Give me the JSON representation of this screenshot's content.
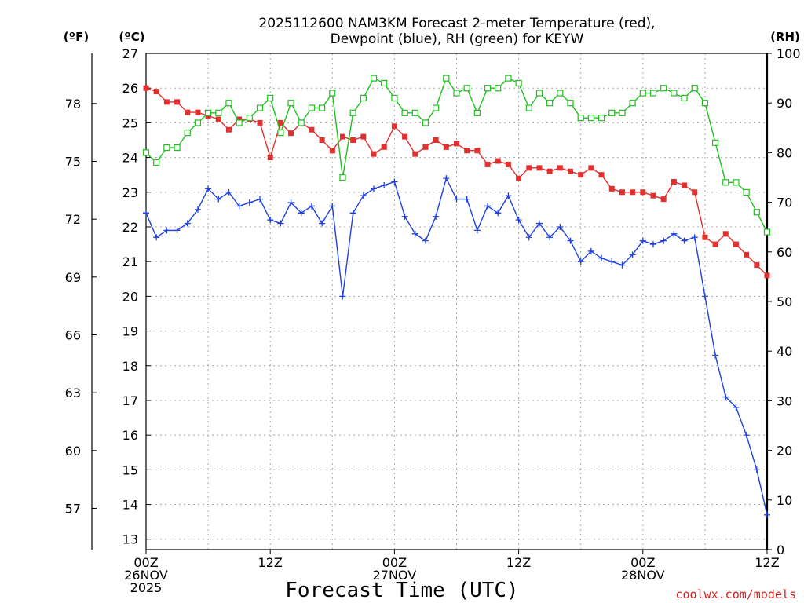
{
  "chart_data": {
    "type": "line",
    "title_line1": "2025112600 NAM3KM Forecast 2-meter Temperature (red),",
    "title_line2": "Dewpoint (blue), RH (green) for KEYW",
    "xlabel": "Forecast Time (UTC)",
    "watermark": "coolwx.com/models",
    "axis_f_label": "(ºF)",
    "axis_c_label": "(ºC)",
    "axis_rh_label": "(RH)",
    "x_hours_range": [
      0,
      60
    ],
    "c_range": [
      12.7,
      27
    ],
    "rh_range": [
      0,
      100
    ],
    "c_ticks": [
      13,
      14,
      15,
      16,
      17,
      18,
      19,
      20,
      21,
      22,
      23,
      24,
      25,
      26,
      27
    ],
    "f_ticks": [
      57,
      60,
      63,
      66,
      69,
      72,
      75,
      78
    ],
    "rh_ticks": [
      0,
      10,
      20,
      30,
      40,
      50,
      60,
      70,
      80,
      90,
      100
    ],
    "x_ticks": [
      {
        "hour": 0,
        "lines": [
          "00Z",
          "26NOV",
          "2025"
        ]
      },
      {
        "hour": 12,
        "lines": [
          "12Z"
        ]
      },
      {
        "hour": 24,
        "lines": [
          "00Z",
          "27NOV"
        ]
      },
      {
        "hour": 36,
        "lines": [
          "12Z"
        ]
      },
      {
        "hour": 48,
        "lines": [
          "00Z",
          "28NOV"
        ]
      },
      {
        "hour": 60,
        "lines": [
          "12Z"
        ]
      }
    ],
    "hours": [
      0,
      1,
      2,
      3,
      4,
      5,
      6,
      7,
      8,
      9,
      10,
      11,
      12,
      13,
      14,
      15,
      16,
      17,
      18,
      19,
      20,
      21,
      22,
      23,
      24,
      25,
      26,
      27,
      28,
      29,
      30,
      31,
      32,
      33,
      34,
      35,
      36,
      37,
      38,
      39,
      40,
      41,
      42,
      43,
      44,
      45,
      46,
      47,
      48,
      49,
      50,
      51,
      52,
      53,
      54,
      55,
      56,
      57,
      58,
      59,
      60
    ],
    "series": [
      {
        "name": "Temperature",
        "units": "C",
        "color": "#e03030",
        "marker": "filled-square",
        "values": [
          26.0,
          25.9,
          25.6,
          25.6,
          25.3,
          25.3,
          25.2,
          25.1,
          24.8,
          25.1,
          25.1,
          25.0,
          24.0,
          25.0,
          24.7,
          25.0,
          24.8,
          24.5,
          24.2,
          24.6,
          24.5,
          24.6,
          24.1,
          24.3,
          24.9,
          24.6,
          24.1,
          24.3,
          24.5,
          24.3,
          24.4,
          24.2,
          24.2,
          23.8,
          23.9,
          23.8,
          23.4,
          23.7,
          23.7,
          23.6,
          23.7,
          23.6,
          23.5,
          23.7,
          23.5,
          23.1,
          23.0,
          23.0,
          23.0,
          22.9,
          22.8,
          23.3,
          23.2,
          23.0,
          21.7,
          21.5,
          21.8,
          21.5,
          21.2,
          20.9,
          20.6
        ]
      },
      {
        "name": "Dewpoint",
        "units": "C",
        "color": "#2040e0",
        "marker": "plus",
        "values": [
          22.4,
          21.7,
          21.9,
          21.9,
          22.1,
          22.5,
          23.1,
          22.8,
          23.0,
          22.6,
          22.7,
          22.8,
          22.2,
          22.1,
          22.7,
          22.4,
          22.6,
          22.1,
          22.6,
          20.0,
          22.4,
          22.9,
          23.1,
          23.2,
          23.3,
          22.3,
          21.8,
          21.6,
          22.3,
          23.4,
          22.8,
          22.8,
          21.9,
          22.6,
          22.4,
          22.9,
          22.2,
          21.7,
          22.1,
          21.7,
          22.0,
          21.6,
          21.0,
          21.3,
          21.1,
          21.0,
          20.9,
          21.2,
          21.6,
          21.5,
          21.6,
          21.8,
          21.6,
          21.7,
          20.0,
          18.3,
          17.1,
          16.8,
          16.0,
          15.0,
          13.7
        ]
      },
      {
        "name": "RH",
        "units": "%",
        "color": "#20c020",
        "marker": "open-square",
        "values": [
          80,
          78,
          81,
          81,
          84,
          86,
          88,
          88,
          90,
          86,
          87,
          89,
          91,
          84,
          90,
          86,
          89,
          89,
          92,
          75,
          88,
          91,
          95,
          94,
          91,
          88,
          88,
          86,
          89,
          95,
          92,
          93,
          88,
          93,
          93,
          95,
          94,
          89,
          92,
          90,
          92,
          90,
          87,
          87,
          87,
          88,
          88,
          90,
          92,
          92,
          93,
          92,
          91,
          93,
          90,
          82,
          74,
          74,
          72,
          68,
          64
        ]
      }
    ]
  }
}
